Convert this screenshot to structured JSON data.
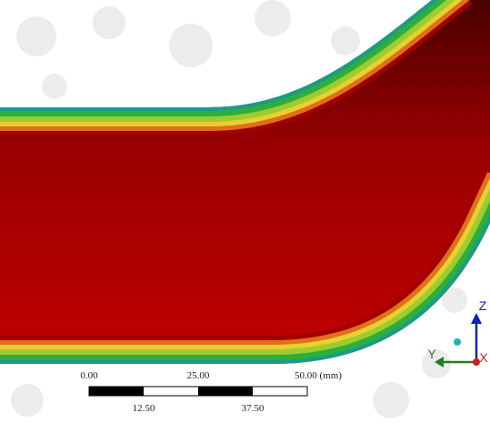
{
  "scale_bar": {
    "top_labels": [
      "0.00",
      "25.00",
      "50.00 (mm)"
    ],
    "bottom_labels": [
      "12.50",
      "37.50"
    ]
  },
  "triad": {
    "z": "Z",
    "y": "Y",
    "x": "X"
  }
}
